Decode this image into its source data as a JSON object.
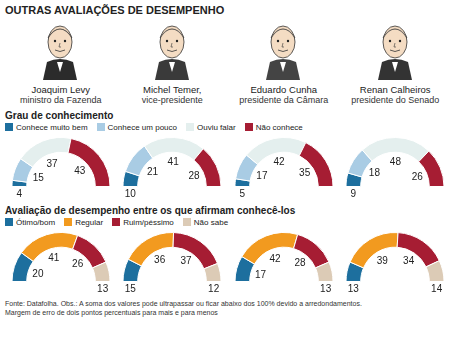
{
  "title": "OUTRAS AVALIAÇÕES DE DESEMPENHO",
  "people": [
    {
      "name": "Joaquim Levy",
      "role": "ministro da Fazenda"
    },
    {
      "name": "Michel Temer,",
      "role": "vice-presidente"
    },
    {
      "name": "Eduardo Cunha",
      "role": "presidente da Câmara"
    },
    {
      "name": "Renan Calheiros",
      "role": "presidente do Senado"
    }
  ],
  "chart_data": [
    {
      "type": "doughnut",
      "title": "Grau de conhecimento",
      "categories": [
        "Conhece muito bem",
        "Conhece um pouco",
        "Ouviu falar",
        "Não conhece"
      ],
      "colors": [
        "#1d6f9e",
        "#a9cce4",
        "#e4efee",
        "#a61d33"
      ],
      "series": [
        {
          "values": [
            4,
            15,
            37,
            43
          ]
        },
        {
          "values": [
            10,
            21,
            41,
            28
          ]
        },
        {
          "values": [
            5,
            17,
            42,
            35
          ]
        },
        {
          "values": [
            9,
            18,
            48,
            26
          ]
        }
      ],
      "data_labels": true,
      "legend": "top"
    },
    {
      "type": "doughnut",
      "title": "Avaliação de desempenho entre os que afirmam conhecê-los",
      "categories": [
        "Ótimo/bom",
        "Regular",
        "Ruim/péssimo",
        "Não sabe"
      ],
      "colors": [
        "#1d6f9e",
        "#f29a1f",
        "#a61d33",
        "#dccbb6"
      ],
      "series": [
        {
          "values": [
            20,
            41,
            26,
            13
          ]
        },
        {
          "values": [
            15,
            36,
            37,
            12
          ]
        },
        {
          "values": [
            17,
            42,
            28,
            13
          ]
        },
        {
          "values": [
            13,
            39,
            34,
            14
          ]
        }
      ],
      "data_labels": true,
      "legend": "top"
    }
  ],
  "footnotes": [
    "Fonte: Datafolha. Obs.: A soma dos valores pode ultrapassar ou ficar abaixo dos 100% devido a arredondamentos.",
    "Margem de erro de dois pontos percentuais para mais e para menos"
  ]
}
